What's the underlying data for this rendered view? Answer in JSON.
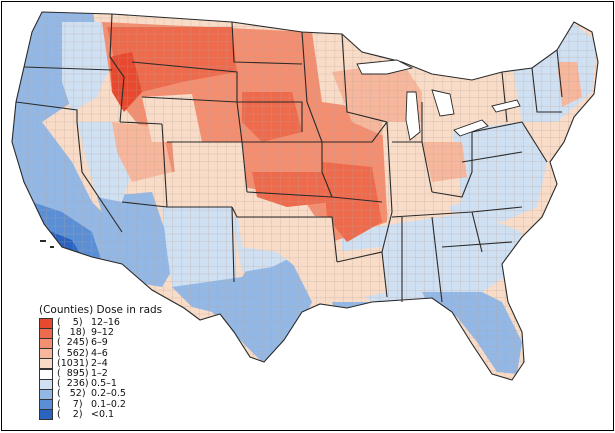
{
  "palette": {
    "c12_16": "#e8492e",
    "c9_12": "#ee6a4c",
    "c6_9": "#f38e70",
    "c4_6": "#f7b79d",
    "c2_4": "#f8dcc8",
    "c1_2": "#ffffff",
    "c05_1": "#cfe0f3",
    "c02_05": "#93b8e6",
    "c01_02": "#5a8fd6",
    "clt01": "#2b64c0",
    "border": "#2a2a2a",
    "county_line": "#b9a59a",
    "water": "#ffffff"
  },
  "legend": {
    "title": "(Counties) Dose in rads",
    "rows": [
      {
        "count": "(    5)",
        "range": "12–16",
        "color": "#e8492e"
      },
      {
        "count": "(   18)",
        "range": "9–12",
        "color": "#ee6a4c"
      },
      {
        "count": "(  245)",
        "range": "6–9",
        "color": "#f38e70"
      },
      {
        "count": "(  562)",
        "range": "4–6",
        "color": "#f7b79d"
      },
      {
        "count": "(1031)",
        "range": "2–4",
        "color": "#f8dcc8"
      },
      {
        "count": "(  895)",
        "range": "1–2",
        "color": "#ffffff"
      },
      {
        "count": "(  236)",
        "range": "0.5–1",
        "color": "#cfe0f3"
      },
      {
        "count": "(   52)",
        "range": "0.2–0.5",
        "color": "#93b8e6"
      },
      {
        "count": "(    7)",
        "range": "0.1–0.2",
        "color": "#5a8fd6"
      },
      {
        "count": "(    2)",
        "range": "<0.1",
        "color": "#2b64c0"
      }
    ]
  }
}
